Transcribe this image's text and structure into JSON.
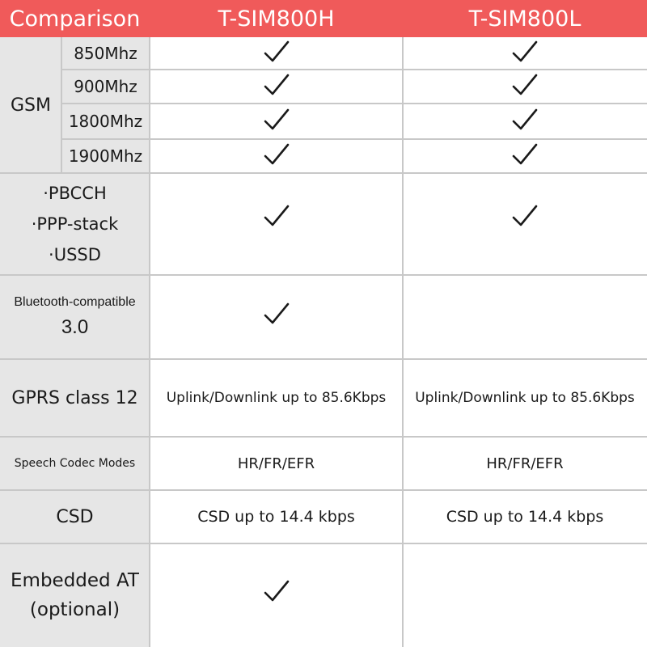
{
  "columns": {
    "label": "Comparison",
    "col1": "T-SIM800H",
    "col2": "T-SIM800L"
  },
  "gsm": {
    "label": "GSM",
    "bands": [
      {
        "band": "850Mhz",
        "col1": true,
        "col2": true
      },
      {
        "band": "900Mhz",
        "col1": true,
        "col2": true
      },
      {
        "band": "1800Mhz",
        "col1": true,
        "col2": true
      },
      {
        "band": "1900Mhz",
        "col1": true,
        "col2": true
      }
    ]
  },
  "features": {
    "lines": [
      "·PBCCH",
      "·PPP-stack",
      "·USSD"
    ],
    "col1": true,
    "col2": true
  },
  "bluetooth": {
    "line1": "Bluetooth-compatible",
    "line2": "3.0",
    "col1": true,
    "col2": false
  },
  "gprs": {
    "label": "GPRS class 12",
    "col1": "Uplink/Downlink up to 85.6Kbps",
    "col2": "Uplink/Downlink up to 85.6Kbps"
  },
  "speech": {
    "label": "Speech Codec Modes",
    "col1": "HR/FR/EFR",
    "col2": "HR/FR/EFR"
  },
  "csd": {
    "label": "CSD",
    "col1": "CSD up to 14.4 kbps",
    "col2": "CSD up to 14.4 kbps"
  },
  "embedded": {
    "line1": "Embedded AT",
    "line2": "(optional)",
    "col1": true,
    "col2": false
  },
  "icons": {
    "check": "check-icon"
  },
  "colors": {
    "header": "#f05a5a",
    "label_bg": "#e6e6e6",
    "grid": "#c8c8c8"
  }
}
